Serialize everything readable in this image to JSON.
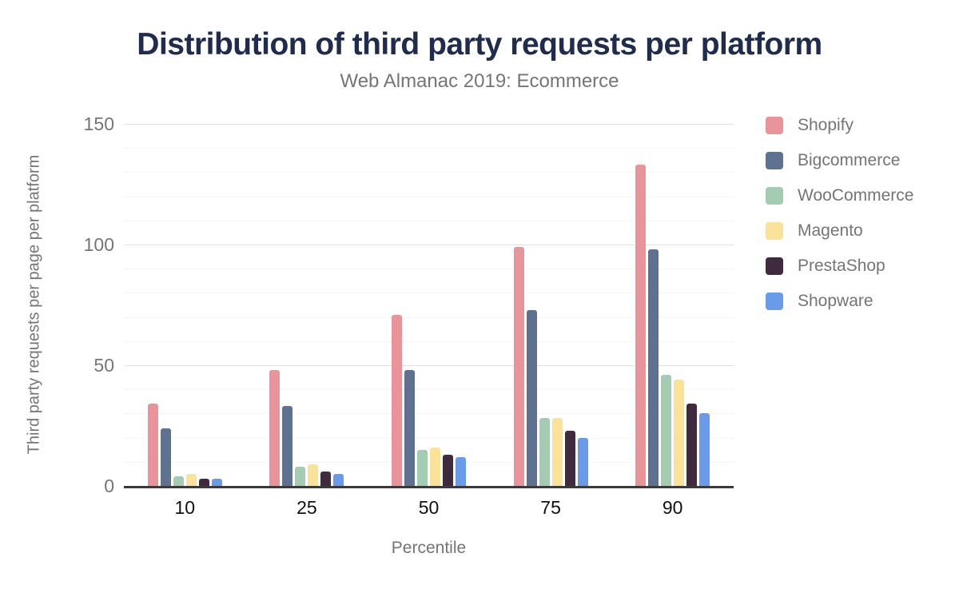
{
  "chart_data": {
    "type": "bar",
    "title": "Distribution of third party requests per platform",
    "subtitle": "Web Almanac 2019: Ecommerce",
    "xlabel": "Percentile",
    "ylabel": "Third party requests per page per platform",
    "categories": [
      "10",
      "25",
      "50",
      "75",
      "90"
    ],
    "series": [
      {
        "name": "Shopify",
        "color": "#e9949a",
        "values": [
          34,
          48,
          71,
          99,
          133
        ]
      },
      {
        "name": "Bigcommerce",
        "color": "#5e7190",
        "values": [
          24,
          33,
          48,
          73,
          98
        ]
      },
      {
        "name": "WooCommerce",
        "color": "#a4ccb2",
        "values": [
          4,
          8,
          15,
          28,
          46
        ]
      },
      {
        "name": "Magento",
        "color": "#fae298",
        "values": [
          5,
          9,
          16,
          28,
          44
        ]
      },
      {
        "name": "PrestaShop",
        "color": "#402a3e",
        "values": [
          3,
          6,
          13,
          23,
          34
        ]
      },
      {
        "name": "Shopware",
        "color": "#699bea",
        "values": [
          3,
          5,
          12,
          20,
          30
        ]
      }
    ],
    "ylim": [
      0,
      150
    ],
    "yticks": [
      0,
      50,
      100,
      150
    ],
    "minor_grid_step": 10,
    "grid": true,
    "legend_position": "right"
  },
  "style": {
    "title_color": "#202c4e",
    "subtitle_color": "#757575",
    "axis_text_color": "#757575",
    "xtick_color": "#111111",
    "axis_line_color": "#3a3a3a",
    "major_grid_color": "#e3e3e3",
    "minor_grid_color": "#ececec",
    "background": "#ffffff"
  }
}
